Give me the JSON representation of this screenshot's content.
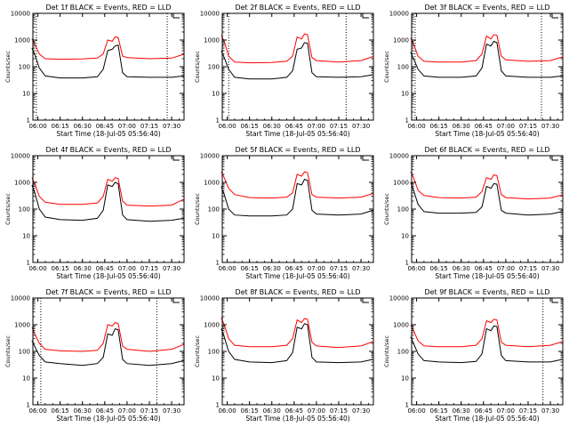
{
  "figure": {
    "common": {
      "xlabel": "Start Time (18-Jul-05 05:56:40)",
      "ylabel": "Counts/sec",
      "title_suffix": " BLACK = Events, RED = LLD"
    },
    "colors": {
      "events": "#000000",
      "lld": "#ff0000",
      "axes": "#000000"
    }
  },
  "chart_data": [
    {
      "type": "line",
      "title": "Det 1f BLACK = Events, RED = LLD",
      "xlabel": "Start Time (18-Jul-05 05:56:40)",
      "ylabel": "Counts/sec",
      "yscale": "log",
      "ylim": [
        1,
        10000
      ],
      "xlim": [
        "05:56:40",
        "07:38:20"
      ],
      "x_ticks": [
        "06:00",
        "06:15",
        "06:30",
        "06:45",
        "07:00",
        "07:15",
        "07:30"
      ],
      "y_ticks": [
        "1",
        "10",
        "100",
        "1000",
        "10000"
      ],
      "vlines": [
        "05:59",
        "07:27"
      ],
      "series": [
        {
          "name": "Events",
          "color": "#000000",
          "x": [
            "05:56",
            "05:58",
            "06:01",
            "06:05",
            "06:15",
            "06:30",
            "06:40",
            "06:44",
            "06:47",
            "06:50",
            "06:52",
            "06:54",
            "06:57",
            "07:00",
            "07:15",
            "07:30",
            "07:38"
          ],
          "values": [
            500,
            280,
            90,
            45,
            38,
            38,
            42,
            80,
            400,
            450,
            600,
            650,
            60,
            42,
            40,
            40,
            45
          ]
        },
        {
          "name": "LLD",
          "color": "#ff0000",
          "x": [
            "05:56",
            "05:58",
            "06:01",
            "06:05",
            "06:15",
            "06:30",
            "06:40",
            "06:44",
            "06:47",
            "06:50",
            "06:52",
            "06:54",
            "06:57",
            "07:00",
            "07:15",
            "07:30",
            "07:38"
          ],
          "values": [
            1100,
            700,
            300,
            200,
            190,
            195,
            210,
            300,
            1000,
            900,
            1300,
            1250,
            250,
            220,
            200,
            210,
            290
          ]
        }
      ]
    },
    {
      "type": "line",
      "title": "Det 2f BLACK = Events, RED = LLD",
      "xlabel": "Start Time (18-Jul-05 05:56:40)",
      "ylabel": "Counts/sec",
      "yscale": "log",
      "ylim": [
        1,
        10000
      ],
      "xlim": [
        "05:56:40",
        "07:38:20"
      ],
      "x_ticks": [
        "06:00",
        "06:15",
        "06:30",
        "06:45",
        "07:00",
        "07:15",
        "07:30"
      ],
      "y_ticks": [
        "1",
        "10",
        "100",
        "1000",
        "10000"
      ],
      "vlines": [
        "06:01",
        "07:20"
      ],
      "series": [
        {
          "name": "Events",
          "color": "#000000",
          "x": [
            "05:56",
            "05:58",
            "06:01",
            "06:05",
            "06:15",
            "06:30",
            "06:40",
            "06:44",
            "06:47",
            "06:50",
            "06:52",
            "06:54",
            "06:57",
            "07:00",
            "07:15",
            "07:30",
            "07:38"
          ],
          "values": [
            400,
            220,
            80,
            40,
            35,
            35,
            40,
            70,
            450,
            500,
            800,
            750,
            60,
            42,
            40,
            42,
            50
          ]
        },
        {
          "name": "LLD",
          "color": "#ff0000",
          "x": [
            "05:56",
            "05:58",
            "06:01",
            "06:05",
            "06:15",
            "06:30",
            "06:40",
            "06:44",
            "06:47",
            "06:50",
            "06:52",
            "06:54",
            "06:57",
            "07:00",
            "07:15",
            "07:30",
            "07:38"
          ],
          "values": [
            1500,
            900,
            250,
            150,
            140,
            145,
            160,
            250,
            1300,
            1100,
            1700,
            1600,
            220,
            170,
            150,
            170,
            240
          ]
        }
      ]
    },
    {
      "type": "line",
      "title": "Det 3f BLACK = Events, RED = LLD",
      "xlabel": "Start Time (18-Jul-05 05:56:40)",
      "ylabel": "Counts/sec",
      "yscale": "log",
      "ylim": [
        1,
        10000
      ],
      "xlim": [
        "05:56:40",
        "07:38:20"
      ],
      "x_ticks": [
        "06:00",
        "06:15",
        "06:30",
        "06:45",
        "07:00",
        "07:15",
        "07:30"
      ],
      "y_ticks": [
        "1",
        "10",
        "100",
        "1000",
        "10000"
      ],
      "vlines": [
        "05:59",
        "07:24"
      ],
      "series": [
        {
          "name": "Events",
          "color": "#000000",
          "x": [
            "05:56",
            "05:58",
            "06:01",
            "06:05",
            "06:15",
            "06:30",
            "06:40",
            "06:44",
            "06:47",
            "06:50",
            "06:52",
            "06:54",
            "06:57",
            "07:00",
            "07:15",
            "07:30",
            "07:38"
          ],
          "values": [
            350,
            200,
            80,
            45,
            40,
            40,
            45,
            90,
            700,
            600,
            900,
            800,
            70,
            45,
            40,
            40,
            45
          ]
        },
        {
          "name": "LLD",
          "color": "#ff0000",
          "x": [
            "05:56",
            "05:58",
            "06:01",
            "06:05",
            "06:15",
            "06:30",
            "06:40",
            "06:44",
            "06:47",
            "06:50",
            "06:52",
            "06:54",
            "06:57",
            "07:00",
            "07:15",
            "07:30",
            "07:38"
          ],
          "values": [
            1200,
            700,
            250,
            160,
            150,
            150,
            170,
            300,
            1400,
            1100,
            1600,
            1500,
            250,
            180,
            160,
            170,
            230
          ]
        }
      ]
    },
    {
      "type": "line",
      "title": "Det 4f BLACK = Events, RED = LLD",
      "xlabel": "Start Time (18-Jul-05 05:56:40)",
      "ylabel": "Counts/sec",
      "yscale": "log",
      "ylim": [
        1,
        10000
      ],
      "xlim": [
        "05:56:40",
        "07:38:20"
      ],
      "x_ticks": [
        "06:00",
        "06:15",
        "06:30",
        "06:45",
        "07:00",
        "07:15",
        "07:30"
      ],
      "y_ticks": [
        "1",
        "10",
        "100",
        "1000",
        "10000"
      ],
      "vlines": [],
      "series": [
        {
          "name": "Events",
          "color": "#000000",
          "x": [
            "05:56",
            "05:58",
            "06:01",
            "06:05",
            "06:15",
            "06:30",
            "06:40",
            "06:44",
            "06:47",
            "06:50",
            "06:52",
            "06:54",
            "06:57",
            "07:00",
            "07:15",
            "07:30",
            "07:38"
          ],
          "values": [
            800,
            400,
            100,
            50,
            40,
            38,
            45,
            90,
            800,
            700,
            1000,
            900,
            60,
            40,
            35,
            38,
            45
          ]
        },
        {
          "name": "LLD",
          "color": "#ff0000",
          "x": [
            "05:56",
            "05:58",
            "06:01",
            "06:05",
            "06:15",
            "06:30",
            "06:40",
            "06:44",
            "06:47",
            "06:50",
            "06:52",
            "06:54",
            "06:57",
            "07:00",
            "07:15",
            "07:30",
            "07:38"
          ],
          "values": [
            1500,
            900,
            300,
            180,
            150,
            150,
            170,
            300,
            1300,
            1100,
            1500,
            1400,
            200,
            140,
            130,
            140,
            230
          ]
        }
      ]
    },
    {
      "type": "line",
      "title": "Det 5f BLACK = Events, RED = LLD",
      "xlabel": "Start Time (18-Jul-05 05:56:40)",
      "ylabel": "Counts/sec",
      "yscale": "log",
      "ylim": [
        1,
        10000
      ],
      "xlim": [
        "05:56:40",
        "07:38:20"
      ],
      "x_ticks": [
        "06:00",
        "06:15",
        "06:30",
        "06:45",
        "07:00",
        "07:15",
        "07:30"
      ],
      "y_ticks": [
        "1",
        "10",
        "100",
        "1000",
        "10000"
      ],
      "vlines": [],
      "series": [
        {
          "name": "Events",
          "color": "#000000",
          "x": [
            "05:56",
            "05:58",
            "06:01",
            "06:05",
            "06:15",
            "06:30",
            "06:40",
            "06:44",
            "06:47",
            "06:50",
            "06:52",
            "06:54",
            "06:57",
            "07:00",
            "07:15",
            "07:30",
            "07:38"
          ],
          "values": [
            700,
            350,
            100,
            60,
            55,
            55,
            60,
            100,
            900,
            800,
            1300,
            1200,
            90,
            65,
            60,
            65,
            90
          ]
        },
        {
          "name": "LLD",
          "color": "#ff0000",
          "x": [
            "05:56",
            "05:58",
            "06:01",
            "06:05",
            "06:15",
            "06:30",
            "06:40",
            "06:44",
            "06:47",
            "06:50",
            "06:52",
            "06:54",
            "06:57",
            "07:00",
            "07:15",
            "07:30",
            "07:38"
          ],
          "values": [
            2500,
            1500,
            600,
            350,
            270,
            260,
            280,
            400,
            2000,
            1700,
            2500,
            2300,
            350,
            280,
            260,
            280,
            380
          ]
        }
      ]
    },
    {
      "type": "line",
      "title": "Det 6f BLACK = Events, RED = LLD",
      "xlabel": "Start Time (18-Jul-05 05:56:40)",
      "ylabel": "Counts/sec",
      "yscale": "log",
      "ylim": [
        1,
        10000
      ],
      "xlim": [
        "05:56:40",
        "07:38:20"
      ],
      "x_ticks": [
        "06:00",
        "06:15",
        "06:30",
        "06:45",
        "07:00",
        "07:15",
        "07:30"
      ],
      "y_ticks": [
        "1",
        "10",
        "100",
        "1000",
        "10000"
      ],
      "vlines": [],
      "series": [
        {
          "name": "Events",
          "color": "#000000",
          "x": [
            "05:56",
            "05:58",
            "06:01",
            "06:05",
            "06:15",
            "06:30",
            "06:40",
            "06:44",
            "06:47",
            "06:50",
            "06:52",
            "06:54",
            "06:57",
            "07:00",
            "07:15",
            "07:30",
            "07:38"
          ],
          "values": [
            1000,
            500,
            150,
            80,
            70,
            70,
            75,
            120,
            700,
            600,
            900,
            850,
            90,
            70,
            60,
            65,
            80
          ]
        },
        {
          "name": "LLD",
          "color": "#ff0000",
          "x": [
            "05:56",
            "05:58",
            "06:01",
            "06:05",
            "06:15",
            "06:30",
            "06:40",
            "06:44",
            "06:47",
            "06:50",
            "06:52",
            "06:54",
            "06:57",
            "07:00",
            "07:15",
            "07:30",
            "07:38"
          ],
          "values": [
            2500,
            1500,
            500,
            320,
            270,
            260,
            280,
            450,
            1500,
            1300,
            1900,
            1800,
            350,
            270,
            240,
            260,
            340
          ]
        }
      ]
    },
    {
      "type": "line",
      "title": "Det 7f BLACK = Events, RED = LLD",
      "xlabel": "Start Time (18-Jul-05 05:56:40)",
      "ylabel": "Counts/sec",
      "yscale": "log",
      "ylim": [
        1,
        10000
      ],
      "xlim": [
        "05:56:40",
        "07:38:20"
      ],
      "x_ticks": [
        "06:00",
        "06:15",
        "06:30",
        "06:45",
        "07:00",
        "07:15",
        "07:30"
      ],
      "y_ticks": [
        "1",
        "10",
        "100",
        "1000",
        "10000"
      ],
      "vlines": [
        "06:02",
        "07:20"
      ],
      "series": [
        {
          "name": "Events",
          "color": "#000000",
          "x": [
            "05:56",
            "05:58",
            "06:01",
            "06:05",
            "06:15",
            "06:30",
            "06:40",
            "06:44",
            "06:47",
            "06:50",
            "06:52",
            "06:54",
            "06:57",
            "07:00",
            "07:15",
            "07:30",
            "07:38"
          ],
          "values": [
            250,
            150,
            70,
            40,
            35,
            30,
            35,
            60,
            450,
            400,
            700,
            650,
            50,
            35,
            30,
            35,
            45
          ]
        },
        {
          "name": "LLD",
          "color": "#ff0000",
          "x": [
            "05:56",
            "05:58",
            "06:01",
            "06:05",
            "06:15",
            "06:30",
            "06:40",
            "06:44",
            "06:47",
            "06:50",
            "06:52",
            "06:54",
            "06:57",
            "07:00",
            "07:15",
            "07:30",
            "07:38"
          ],
          "values": [
            800,
            450,
            200,
            120,
            105,
            100,
            110,
            200,
            1000,
            900,
            1200,
            1100,
            160,
            120,
            100,
            120,
            180
          ]
        }
      ]
    },
    {
      "type": "line",
      "title": "Det 8f BLACK = Events, RED = LLD",
      "xlabel": "Start Time (18-Jul-05 05:56:40)",
      "ylabel": "Counts/sec",
      "yscale": "log",
      "ylim": [
        1,
        10000
      ],
      "xlim": [
        "05:56:40",
        "07:38:20"
      ],
      "x_ticks": [
        "06:00",
        "06:15",
        "06:30",
        "06:45",
        "07:00",
        "07:15",
        "07:30"
      ],
      "y_ticks": [
        "1",
        "10",
        "100",
        "1000",
        "10000"
      ],
      "vlines": [],
      "series": [
        {
          "name": "Events",
          "color": "#000000",
          "x": [
            "05:56",
            "05:58",
            "06:01",
            "06:05",
            "06:15",
            "06:30",
            "06:40",
            "06:44",
            "06:47",
            "06:50",
            "06:52",
            "06:54",
            "06:57",
            "07:00",
            "07:15",
            "07:30",
            "07:38"
          ],
          "values": [
            700,
            350,
            100,
            50,
            40,
            38,
            45,
            90,
            800,
            700,
            1100,
            1000,
            60,
            40,
            38,
            40,
            50
          ]
        },
        {
          "name": "LLD",
          "color": "#ff0000",
          "x": [
            "05:56",
            "05:58",
            "06:01",
            "06:05",
            "06:15",
            "06:30",
            "06:40",
            "06:44",
            "06:47",
            "06:50",
            "06:52",
            "06:54",
            "06:57",
            "07:00",
            "07:15",
            "07:30",
            "07:38"
          ],
          "values": [
            1800,
            1000,
            300,
            170,
            150,
            150,
            170,
            300,
            1500,
            1200,
            1700,
            1600,
            220,
            160,
            140,
            160,
            230
          ]
        }
      ]
    },
    {
      "type": "line",
      "title": "Det 9f BLACK = Events, RED = LLD",
      "xlabel": "Start Time (18-Jul-05 05:56:40)",
      "ylabel": "Counts/sec",
      "yscale": "log",
      "ylim": [
        1,
        10000
      ],
      "xlim": [
        "05:56:40",
        "07:38:20"
      ],
      "x_ticks": [
        "06:00",
        "06:15",
        "06:30",
        "06:45",
        "07:00",
        "07:15",
        "07:30"
      ],
      "y_ticks": [
        "1",
        "10",
        "100",
        "1000",
        "10000"
      ],
      "vlines": [
        "07:25"
      ],
      "series": [
        {
          "name": "Events",
          "color": "#000000",
          "x": [
            "05:56",
            "05:58",
            "06:01",
            "06:05",
            "06:15",
            "06:30",
            "06:40",
            "06:44",
            "06:47",
            "06:50",
            "06:52",
            "06:54",
            "06:57",
            "07:00",
            "07:15",
            "07:30",
            "07:38"
          ],
          "values": [
            350,
            200,
            80,
            45,
            40,
            38,
            42,
            80,
            700,
            600,
            900,
            850,
            70,
            45,
            40,
            40,
            50
          ]
        },
        {
          "name": "LLD",
          "color": "#ff0000",
          "x": [
            "05:56",
            "05:58",
            "06:01",
            "06:05",
            "06:15",
            "06:30",
            "06:40",
            "06:44",
            "06:47",
            "06:50",
            "06:52",
            "06:54",
            "06:57",
            "07:00",
            "07:15",
            "07:30",
            "07:38"
          ],
          "values": [
            1000,
            600,
            250,
            160,
            150,
            150,
            170,
            300,
            1400,
            1200,
            1600,
            1500,
            220,
            170,
            150,
            170,
            230
          ]
        }
      ]
    }
  ]
}
